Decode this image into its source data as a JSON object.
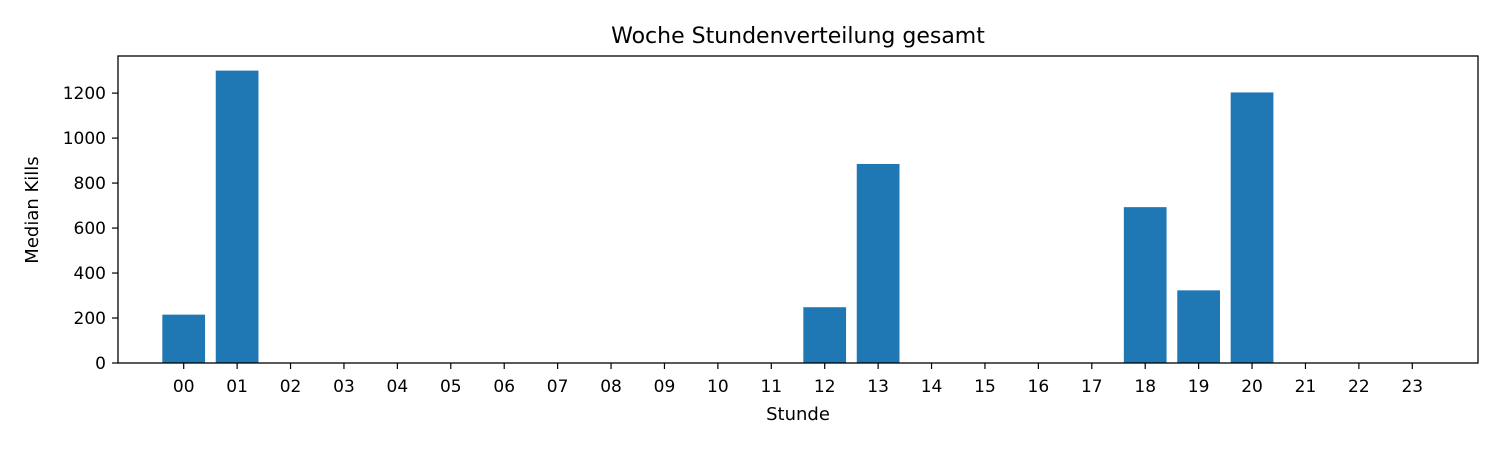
{
  "chart_data": {
    "type": "bar",
    "title": "Woche Stundenverteilung gesamt",
    "xlabel": "Stunde",
    "ylabel": "Median Kills",
    "categories": [
      "00",
      "01",
      "02",
      "03",
      "04",
      "05",
      "06",
      "07",
      "08",
      "09",
      "10",
      "11",
      "12",
      "13",
      "14",
      "15",
      "16",
      "17",
      "18",
      "19",
      "20",
      "21",
      "22",
      "23"
    ],
    "values": [
      215,
      1300,
      0,
      0,
      0,
      0,
      0,
      0,
      0,
      0,
      0,
      0,
      248,
      885,
      0,
      2,
      0,
      0,
      693,
      323,
      1203,
      0,
      0,
      0
    ],
    "ylim": [
      0,
      1365
    ],
    "yticks": [
      0,
      200,
      400,
      600,
      800,
      1000,
      1200
    ],
    "grid": false,
    "bar_color": "#1f77b4"
  }
}
